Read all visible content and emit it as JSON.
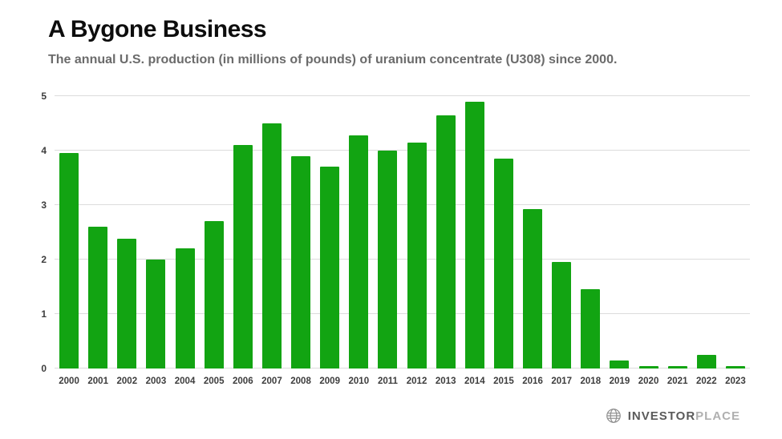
{
  "header": {
    "title": "A Bygone Business",
    "subtitle": "The annual U.S. production (in millions of pounds) of uranium concentrate (U308) since 2000."
  },
  "chart_data": {
    "type": "bar",
    "title": "A Bygone Business",
    "subtitle": "The annual U.S. production (in millions of pounds) of uranium concentrate (U308) since 2000.",
    "categories": [
      "2000",
      "2001",
      "2002",
      "2003",
      "2004",
      "2005",
      "2006",
      "2007",
      "2008",
      "2009",
      "2010",
      "2011",
      "2012",
      "2013",
      "2014",
      "2015",
      "2016",
      "2017",
      "2018",
      "2019",
      "2020",
      "2021",
      "2022",
      "2023"
    ],
    "values": [
      3.95,
      2.6,
      2.38,
      2.0,
      2.2,
      2.7,
      4.1,
      4.5,
      3.9,
      3.7,
      4.28,
      4.0,
      4.15,
      4.65,
      4.9,
      3.85,
      2.92,
      1.95,
      1.45,
      0.15,
      0.05,
      0.05,
      0.25,
      0.05
    ],
    "xlabel": "",
    "ylabel": "",
    "ylim": [
      0,
      5
    ],
    "yticks": [
      0,
      1,
      2,
      3,
      4,
      5
    ],
    "grid": true,
    "legend": "none",
    "bar_color": "#12a412"
  },
  "footer": {
    "logo_part1": "INVESTOR",
    "logo_part2": "PLACE"
  },
  "colors": {
    "bar_green": "#12a412",
    "title_text": "#0d0d0d",
    "subtitle_text": "#6b6b6b",
    "axis_text": "#3d3d3d",
    "gridline": "#dcdcdc",
    "logo_dark": "#5a5a5a",
    "logo_light": "#b0b0b0",
    "background": "#ffffff"
  }
}
